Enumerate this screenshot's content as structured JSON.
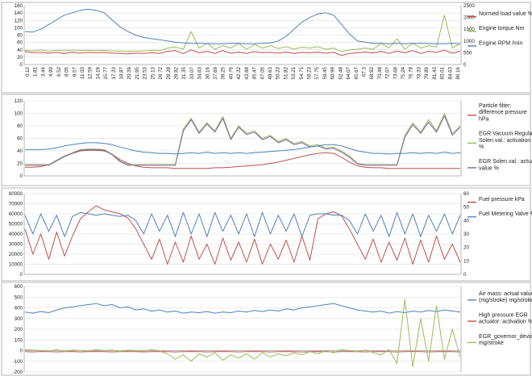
{
  "chart_data": [
    {
      "type": "line",
      "title": "",
      "ylim": [
        0,
        160
      ],
      "y_ticks": [
        0,
        20,
        40,
        60,
        80,
        100,
        120,
        140,
        160
      ],
      "y2lim": [
        0,
        2500
      ],
      "y2_ticks": [
        0,
        500,
        1000,
        1500,
        2000,
        2500
      ],
      "x_ticks": [
        "0.12",
        "1.81",
        "3.44",
        "4.99",
        "6.52",
        "8.05",
        "9.57",
        "11.03",
        "12.59",
        "14.19",
        "15.77",
        "17.33",
        "18.87",
        "20.39",
        "21.95",
        "23.53",
        "25.13",
        "26.72",
        "28.28",
        "29.82",
        "31.35",
        "33.07",
        "34.63",
        "36.16",
        "37.69",
        "39.25",
        "40.76",
        "42.32",
        "43.88",
        "45.47",
        "47.05",
        "48.63",
        "50.23",
        "51.82",
        "53.21",
        "54.71",
        "56.23",
        "57.75",
        "59.45",
        "60.99",
        "62.48",
        "64.07",
        "65.67",
        "67.3",
        "68.92",
        "70.48",
        "72.07",
        "73.68",
        "75.24",
        "76.78",
        "78.33",
        "79.89",
        "81.43",
        "83.01",
        "84.63",
        "86.16"
      ],
      "legend_position": "right",
      "grid": true,
      "series": [
        {
          "name": "Normed load value %",
          "axis": "left",
          "color": "#c0504d",
          "values": [
            35,
            32,
            33,
            31,
            33,
            30,
            34,
            31,
            33,
            32,
            33,
            31,
            30,
            29,
            31,
            30,
            32,
            30,
            36,
            38,
            30,
            40,
            32,
            36,
            30,
            38,
            31,
            34,
            30,
            35,
            32,
            33,
            31,
            34,
            30,
            33,
            32,
            34,
            31,
            33,
            25,
            30,
            32,
            34,
            31,
            36,
            30,
            37,
            32,
            38,
            30,
            36,
            33,
            39,
            31,
            36
          ]
        },
        {
          "name": "Engine torque Nm",
          "axis": "right",
          "color": "#9bbb59",
          "values": [
            600,
            580,
            620,
            570,
            610,
            590,
            620,
            600,
            610,
            590,
            600,
            580,
            570,
            560,
            570,
            580,
            600,
            590,
            700,
            750,
            650,
            1400,
            700,
            900,
            650,
            800,
            700,
            900,
            650,
            850,
            700,
            800,
            680,
            760,
            650,
            740,
            700,
            760,
            650,
            700,
            550,
            620,
            650,
            700,
            650,
            900,
            700,
            1100,
            650,
            900,
            700,
            800,
            750,
            2100,
            700,
            900
          ]
        },
        {
          "name": "Engine RPM /min",
          "axis": "right",
          "color": "#4f81bd",
          "values": [
            1400,
            1380,
            1500,
            1700,
            1900,
            2100,
            2200,
            2300,
            2350,
            2300,
            2200,
            1900,
            1600,
            1400,
            1250,
            1150,
            1100,
            1050,
            1000,
            950,
            920,
            900,
            900,
            890,
            880,
            880,
            900,
            900,
            880,
            880,
            900,
            920,
            1000,
            1200,
            1500,
            1800,
            2000,
            2150,
            2200,
            2100,
            1700,
            1300,
            1000,
            950,
            900,
            900,
            880,
            900,
            880,
            900,
            900,
            890,
            880,
            880,
            900,
            880
          ]
        }
      ]
    },
    {
      "type": "line",
      "title": "",
      "ylim": [
        0,
        120
      ],
      "y_ticks": [
        0,
        20,
        40,
        60,
        80,
        100,
        120
      ],
      "y2lim": [
        0,
        120
      ],
      "legend_position": "right",
      "grid": true,
      "series": [
        {
          "name": "Particle filter: difference pressure hPa",
          "axis": "left",
          "color": "#c0504d",
          "values": [
            14,
            14,
            15,
            18,
            25,
            32,
            36,
            40,
            41,
            41,
            40,
            35,
            26,
            20,
            16,
            14,
            13,
            13,
            13,
            12,
            12,
            12,
            12,
            12,
            13,
            13,
            14,
            15,
            16,
            17,
            18,
            20,
            22,
            25,
            28,
            31,
            34,
            36,
            37,
            36,
            30,
            22,
            16,
            14,
            13,
            13,
            12,
            12,
            12,
            12,
            12,
            12,
            12,
            12,
            12,
            12
          ]
        },
        {
          "name": "EGR Vacuum Regulator Solen.val.: activation %",
          "axis": "left",
          "color": "#9bbb59",
          "values": [
            18,
            18,
            18,
            18,
            25,
            32,
            37,
            42,
            43,
            43,
            42,
            35,
            24,
            18,
            18,
            18,
            18,
            18,
            18,
            18,
            75,
            92,
            70,
            85,
            72,
            95,
            60,
            80,
            68,
            72,
            60,
            65,
            55,
            60,
            52,
            55,
            48,
            50,
            45,
            46,
            40,
            32,
            20,
            18,
            18,
            18,
            18,
            18,
            65,
            85,
            70,
            90,
            72,
            100,
            68,
            80
          ]
        },
        {
          "name": "EGR Solen.val.: actual value %",
          "axis": "left",
          "color": "#8064a2",
          "values": [
            17,
            17,
            17,
            17,
            24,
            31,
            36,
            41,
            42,
            42,
            41,
            34,
            23,
            17,
            17,
            17,
            17,
            17,
            17,
            17,
            72,
            90,
            68,
            83,
            70,
            92,
            58,
            78,
            66,
            70,
            58,
            63,
            53,
            58,
            50,
            53,
            46,
            48,
            43,
            44,
            38,
            30,
            19,
            17,
            17,
            17,
            17,
            17,
            62,
            82,
            68,
            86,
            70,
            96,
            65,
            78
          ]
        },
        {
          "name": "",
          "axis": "left",
          "color": "#4f81bd",
          "values": [
            42,
            42,
            42,
            43,
            45,
            48,
            50,
            52,
            53,
            53,
            52,
            50,
            46,
            43,
            40,
            38,
            37,
            36,
            36,
            35,
            36,
            37,
            36,
            38,
            36,
            37,
            36,
            37,
            36,
            37,
            38,
            39,
            40,
            41,
            42,
            44,
            46,
            48,
            50,
            50,
            48,
            44,
            40,
            38,
            36,
            36,
            35,
            36,
            36,
            37,
            36,
            37,
            36,
            38,
            36,
            37
          ]
        }
      ]
    },
    {
      "type": "line",
      "title": "",
      "ylim": [
        0,
        80000
      ],
      "y_ticks": [
        0,
        10000,
        20000,
        30000,
        40000,
        50000,
        60000,
        70000,
        80000
      ],
      "y2lim": [
        0,
        60
      ],
      "y2_ticks": [
        0,
        10,
        20,
        30,
        40,
        50,
        60
      ],
      "legend_position": "right",
      "grid": true,
      "series": [
        {
          "name": "Fuel pressure kPa",
          "axis": "left",
          "color": "#c0504d",
          "values": [
            45000,
            20000,
            40000,
            15000,
            42000,
            18000,
            38000,
            55000,
            62000,
            68000,
            64000,
            62000,
            60000,
            56000,
            45000,
            30000,
            15000,
            35000,
            10000,
            32000,
            12000,
            38000,
            15000,
            30000,
            10000,
            36000,
            14000,
            32000,
            12000,
            35000,
            10000,
            30000,
            15000,
            34000,
            12000,
            38000,
            14000,
            55000,
            60000,
            62000,
            58000,
            45000,
            30000,
            15000,
            35000,
            12000,
            32000,
            14000,
            36000,
            10000,
            34000,
            12000,
            38000,
            15000,
            30000,
            12000
          ]
        },
        {
          "name": "Fuel Metering Valve %",
          "axis": "right",
          "color": "#4f81bd",
          "values": [
            44,
            30,
            45,
            32,
            44,
            28,
            43,
            46,
            45,
            44,
            45,
            44,
            43,
            44,
            40,
            30,
            45,
            32,
            44,
            28,
            46,
            30,
            45,
            28,
            46,
            32,
            44,
            30,
            45,
            28,
            46,
            30,
            44,
            32,
            45,
            28,
            44,
            45,
            45,
            44,
            44,
            40,
            30,
            45,
            32,
            44,
            28,
            46,
            30,
            45,
            28,
            44,
            32,
            45,
            30,
            44
          ]
        }
      ]
    },
    {
      "type": "line",
      "title": "",
      "ylim": [
        -200,
        600
      ],
      "y_ticks": [
        -200,
        -100,
        0,
        100,
        200,
        300,
        400,
        500,
        600
      ],
      "legend_position": "right",
      "grid": true,
      "series": [
        {
          "name": "Air mass: actual value (mg/stroke) mg/stroke",
          "axis": "left",
          "color": "#4f81bd",
          "values": [
            360,
            350,
            365,
            355,
            380,
            400,
            410,
            420,
            430,
            440,
            420,
            430,
            400,
            410,
            380,
            390,
            370,
            380,
            360,
            370,
            350,
            360,
            355,
            365,
            350,
            360,
            355,
            370,
            360,
            375,
            365,
            380,
            370,
            390,
            380,
            400,
            410,
            420,
            430,
            440,
            420,
            400,
            380,
            370,
            360,
            370,
            350,
            365,
            355,
            370,
            360,
            375,
            365,
            380,
            370,
            360
          ]
        },
        {
          "name": "High pressure EGR actuator: activation %",
          "axis": "left",
          "color": "#c0504d",
          "values": [
            -10,
            -12,
            -8,
            -10,
            -12,
            -10,
            -8,
            -12,
            -10,
            -8,
            -10,
            -12,
            -10,
            -8,
            -10,
            -12,
            -10,
            -8,
            -10,
            -12,
            -10,
            -8,
            -10,
            -12,
            -10,
            -8,
            -10,
            -12,
            -10,
            -8,
            -10,
            -12,
            -10,
            -8,
            -10,
            -12,
            -10,
            -8,
            -10,
            -12,
            -10,
            -8,
            -10,
            -12,
            -10,
            -8,
            -10,
            -12,
            -10,
            -8,
            -10,
            -12,
            -10,
            -8,
            -10,
            -12
          ]
        },
        {
          "name": "EGR_governor_deviation mg/stroke",
          "axis": "left",
          "color": "#9bbb59",
          "values": [
            10,
            5,
            0,
            -5,
            10,
            -10,
            5,
            0,
            -5,
            10,
            0,
            5,
            -10,
            5,
            0,
            -5,
            10,
            -5,
            -30,
            -80,
            -40,
            -100,
            -30,
            -60,
            -20,
            -90,
            -40,
            -70,
            -30,
            -80,
            -20,
            -60,
            -30,
            -50,
            -20,
            -40,
            -10,
            -30,
            0,
            -20,
            10,
            0,
            -10,
            5,
            -20,
            -40,
            10,
            -120,
            480,
            -150,
            300,
            -100,
            420,
            -80,
            200,
            -60
          ]
        }
      ]
    }
  ]
}
